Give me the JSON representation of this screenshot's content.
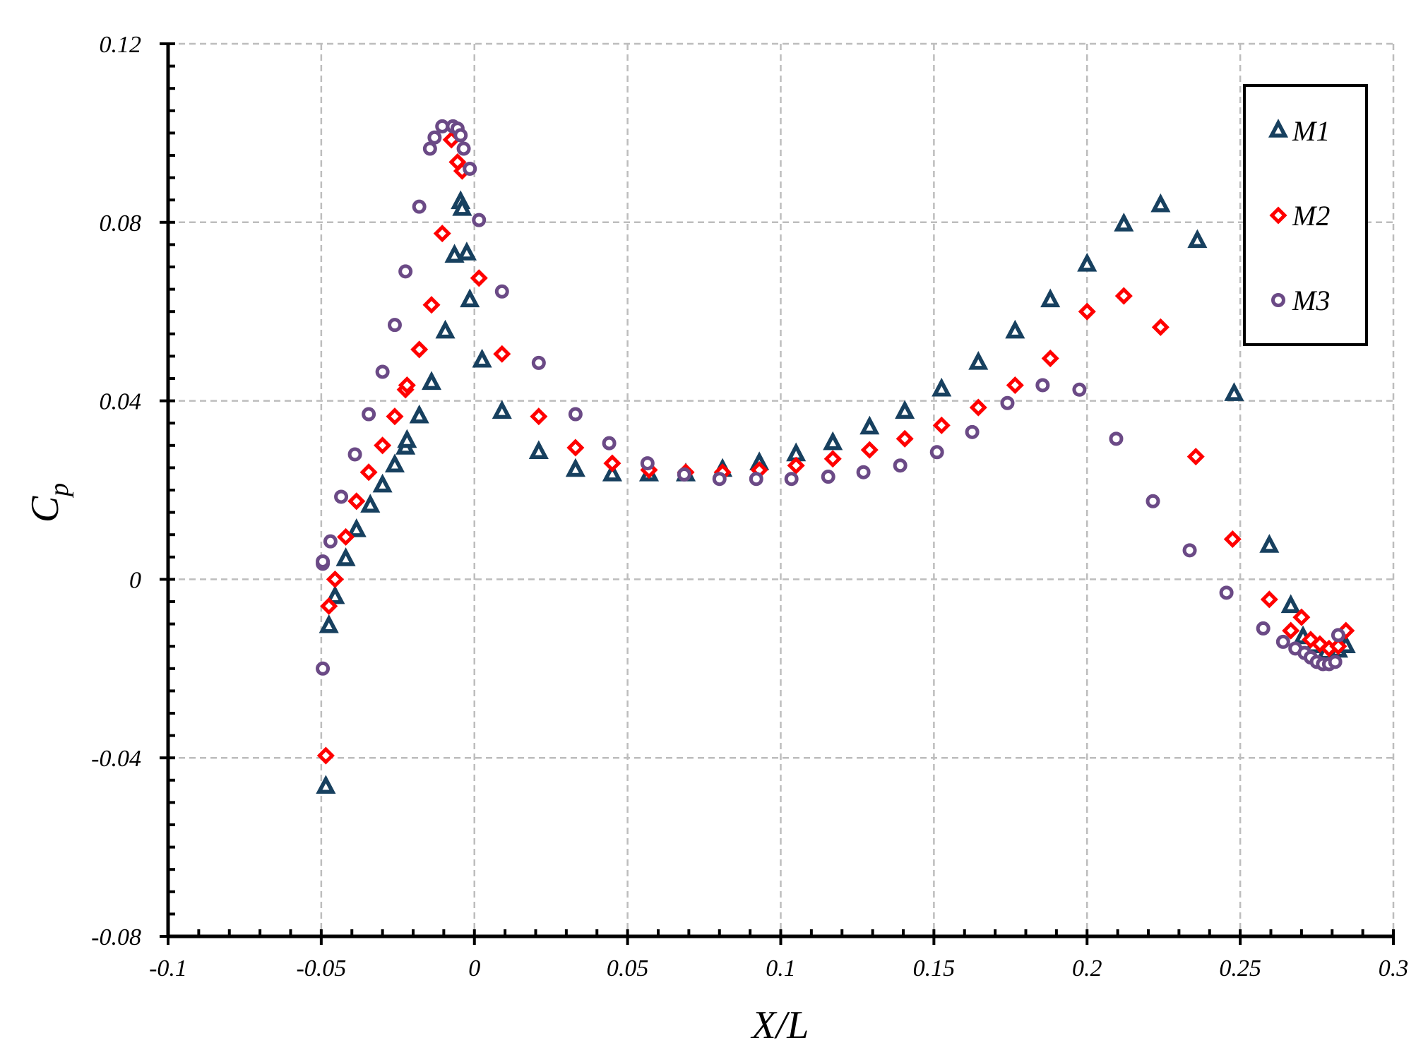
{
  "chart_data": {
    "type": "scatter",
    "xlabel": "X/L",
    "ylabel": "C",
    "ylabel_sub": "p",
    "xlim": [
      -0.1,
      0.3
    ],
    "ylim": [
      -0.08,
      0.12
    ],
    "xticks": [
      "-0.1",
      "-0.05",
      "0",
      "0.05",
      "0.1",
      "0.15",
      "0.2",
      "0.25",
      "0.3"
    ],
    "yticks": [
      "-0.08",
      "-0.04",
      "0",
      "0.04",
      "0.08",
      "0.12"
    ],
    "grid": true,
    "legend_position": "top-right",
    "series": [
      {
        "name": "M1",
        "marker": "triangle",
        "color": "#17405f",
        "points": [
          [
            -0.0485,
            -0.0465
          ],
          [
            -0.0475,
            -0.0105
          ],
          [
            -0.0455,
            -0.004
          ],
          [
            -0.042,
            0.0045
          ],
          [
            -0.0385,
            0.011
          ],
          [
            -0.034,
            0.0165
          ],
          [
            -0.03,
            0.021
          ],
          [
            -0.026,
            0.0255
          ],
          [
            -0.0225,
            0.0295
          ],
          [
            -0.022,
            0.031
          ],
          [
            -0.018,
            0.0365
          ],
          [
            -0.014,
            0.044
          ],
          [
            -0.0095,
            0.0555
          ],
          [
            -0.0065,
            0.0725
          ],
          [
            -0.0045,
            0.0845
          ],
          [
            -0.004,
            0.083
          ],
          [
            -0.0025,
            0.073
          ],
          [
            -0.0015,
            0.0625
          ],
          [
            0.0025,
            0.049
          ],
          [
            0.009,
            0.0375
          ],
          [
            0.021,
            0.0285
          ],
          [
            0.033,
            0.0245
          ],
          [
            0.045,
            0.0235
          ],
          [
            0.057,
            0.0235
          ],
          [
            0.069,
            0.0235
          ],
          [
            0.081,
            0.0245
          ],
          [
            0.093,
            0.026
          ],
          [
            0.105,
            0.028
          ],
          [
            0.117,
            0.0305
          ],
          [
            0.129,
            0.034
          ],
          [
            0.1405,
            0.0375
          ],
          [
            0.1525,
            0.0425
          ],
          [
            0.1645,
            0.0485
          ],
          [
            0.1765,
            0.0555
          ],
          [
            0.188,
            0.0625
          ],
          [
            0.2,
            0.0705
          ],
          [
            0.212,
            0.0795
          ],
          [
            0.224,
            0.0838
          ],
          [
            0.236,
            0.0758
          ],
          [
            0.248,
            0.0415
          ],
          [
            0.2595,
            0.0075
          ],
          [
            0.2665,
            -0.006
          ],
          [
            0.2705,
            -0.013
          ],
          [
            0.274,
            -0.015
          ],
          [
            0.278,
            -0.0165
          ],
          [
            0.282,
            -0.016
          ],
          [
            0.2845,
            -0.015
          ]
        ]
      },
      {
        "name": "M2",
        "marker": "diamond",
        "color": "#ff0000",
        "points": [
          [
            -0.0485,
            -0.0395
          ],
          [
            -0.0475,
            -0.006
          ],
          [
            -0.0455,
            0.0
          ],
          [
            -0.042,
            0.0095
          ],
          [
            -0.0385,
            0.0175
          ],
          [
            -0.0345,
            0.024
          ],
          [
            -0.03,
            0.03
          ],
          [
            -0.026,
            0.0365
          ],
          [
            -0.0225,
            0.0425
          ],
          [
            -0.022,
            0.0435
          ],
          [
            -0.018,
            0.0515
          ],
          [
            -0.014,
            0.0615
          ],
          [
            -0.0105,
            0.0775
          ],
          [
            -0.0075,
            0.0985
          ],
          [
            -0.0055,
            0.0935
          ],
          [
            -0.004,
            0.0915
          ],
          [
            0.0015,
            0.0675
          ],
          [
            0.009,
            0.0505
          ],
          [
            0.021,
            0.0365
          ],
          [
            0.033,
            0.0295
          ],
          [
            0.045,
            0.026
          ],
          [
            0.057,
            0.0245
          ],
          [
            0.069,
            0.024
          ],
          [
            0.081,
            0.024
          ],
          [
            0.093,
            0.0245
          ],
          [
            0.105,
            0.0255
          ],
          [
            0.117,
            0.027
          ],
          [
            0.129,
            0.029
          ],
          [
            0.1405,
            0.0315
          ],
          [
            0.1525,
            0.0345
          ],
          [
            0.1645,
            0.0385
          ],
          [
            0.1765,
            0.0435
          ],
          [
            0.188,
            0.0495
          ],
          [
            0.2,
            0.06
          ],
          [
            0.212,
            0.0635
          ],
          [
            0.224,
            0.0565
          ],
          [
            0.2355,
            0.0275
          ],
          [
            0.2475,
            0.009
          ],
          [
            0.2595,
            -0.0045
          ],
          [
            0.2665,
            -0.0115
          ],
          [
            0.27,
            -0.0085
          ],
          [
            0.273,
            -0.0135
          ],
          [
            0.276,
            -0.0145
          ],
          [
            0.279,
            -0.0155
          ],
          [
            0.282,
            -0.015
          ],
          [
            0.2845,
            -0.0115
          ]
        ]
      },
      {
        "name": "M3",
        "marker": "circle",
        "color": "#6b4a86",
        "points": [
          [
            -0.0495,
            -0.02
          ],
          [
            -0.0495,
            0.0035
          ],
          [
            -0.0495,
            0.004
          ],
          [
            -0.047,
            0.0085
          ],
          [
            -0.0435,
            0.0185
          ],
          [
            -0.039,
            0.028
          ],
          [
            -0.0345,
            0.037
          ],
          [
            -0.03,
            0.0465
          ],
          [
            -0.026,
            0.057
          ],
          [
            -0.0225,
            0.069
          ],
          [
            -0.018,
            0.0835
          ],
          [
            -0.0145,
            0.0965
          ],
          [
            -0.013,
            0.099
          ],
          [
            -0.0105,
            0.1015
          ],
          [
            -0.007,
            0.1015
          ],
          [
            -0.0055,
            0.101
          ],
          [
            -0.0045,
            0.0995
          ],
          [
            -0.0035,
            0.0965
          ],
          [
            -0.0015,
            0.092
          ],
          [
            0.0015,
            0.0805
          ],
          [
            0.009,
            0.0645
          ],
          [
            0.021,
            0.0485
          ],
          [
            0.033,
            0.037
          ],
          [
            0.044,
            0.0305
          ],
          [
            0.0565,
            0.026
          ],
          [
            0.0685,
            0.0235
          ],
          [
            0.08,
            0.0225
          ],
          [
            0.092,
            0.0225
          ],
          [
            0.1035,
            0.0225
          ],
          [
            0.1155,
            0.023
          ],
          [
            0.127,
            0.024
          ],
          [
            0.139,
            0.0255
          ],
          [
            0.151,
            0.0285
          ],
          [
            0.1625,
            0.033
          ],
          [
            0.174,
            0.0395
          ],
          [
            0.1855,
            0.0435
          ],
          [
            0.1975,
            0.0425
          ],
          [
            0.2095,
            0.0315
          ],
          [
            0.2215,
            0.0175
          ],
          [
            0.2335,
            0.0065
          ],
          [
            0.2455,
            -0.003
          ],
          [
            0.2575,
            -0.011
          ],
          [
            0.264,
            -0.014
          ],
          [
            0.268,
            -0.0155
          ],
          [
            0.271,
            -0.0165
          ],
          [
            0.273,
            -0.0175
          ],
          [
            0.275,
            -0.0185
          ],
          [
            0.277,
            -0.019
          ],
          [
            0.279,
            -0.019
          ],
          [
            0.281,
            -0.0185
          ],
          [
            0.282,
            -0.0125
          ]
        ]
      }
    ]
  }
}
